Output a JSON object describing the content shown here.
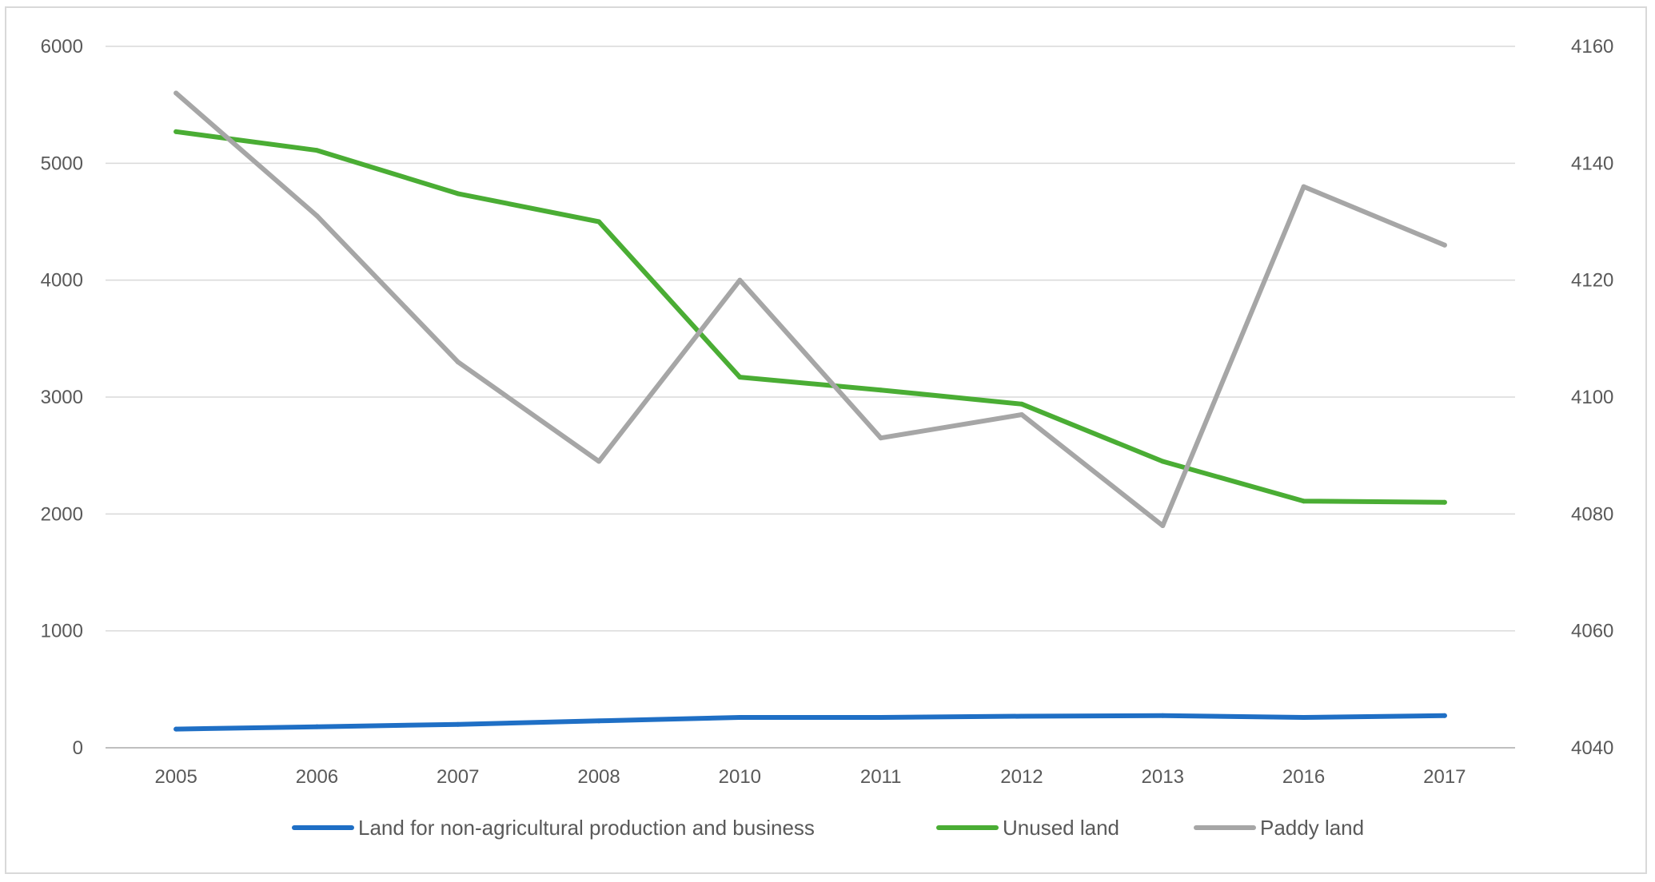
{
  "chart_data": {
    "type": "line",
    "title": "",
    "xlabel": "",
    "ylabel": "",
    "y2label": "",
    "categories": [
      "2005",
      "2006",
      "2007",
      "2008",
      "2010",
      "2011",
      "2012",
      "2013",
      "2016",
      "2017"
    ],
    "ylim": [
      0,
      6000
    ],
    "yticks": [
      0,
      1000,
      2000,
      3000,
      4000,
      5000,
      6000
    ],
    "y2lim": [
      4040,
      4160
    ],
    "y2ticks": [
      4040,
      4060,
      4080,
      4100,
      4120,
      4140,
      4160
    ],
    "grid": true,
    "legend_position": "bottom",
    "series": [
      {
        "name": "Land for non-agricultural production and business",
        "axis": "left",
        "color": "#1f6fc5",
        "values": [
          160,
          180,
          200,
          230,
          260,
          260,
          270,
          275,
          260,
          275
        ]
      },
      {
        "name": "Unused land",
        "axis": "left",
        "color": "#4aad34",
        "values": [
          5270,
          5110,
          4740,
          4500,
          3170,
          3060,
          2940,
          2450,
          2110,
          2100
        ]
      },
      {
        "name": "Paddy land",
        "axis": "right",
        "color": "#a6a6a6",
        "values": [
          4152,
          4131,
          4106,
          4089,
          4120,
          4093,
          4097,
          4078,
          4136,
          4126
        ]
      }
    ]
  }
}
